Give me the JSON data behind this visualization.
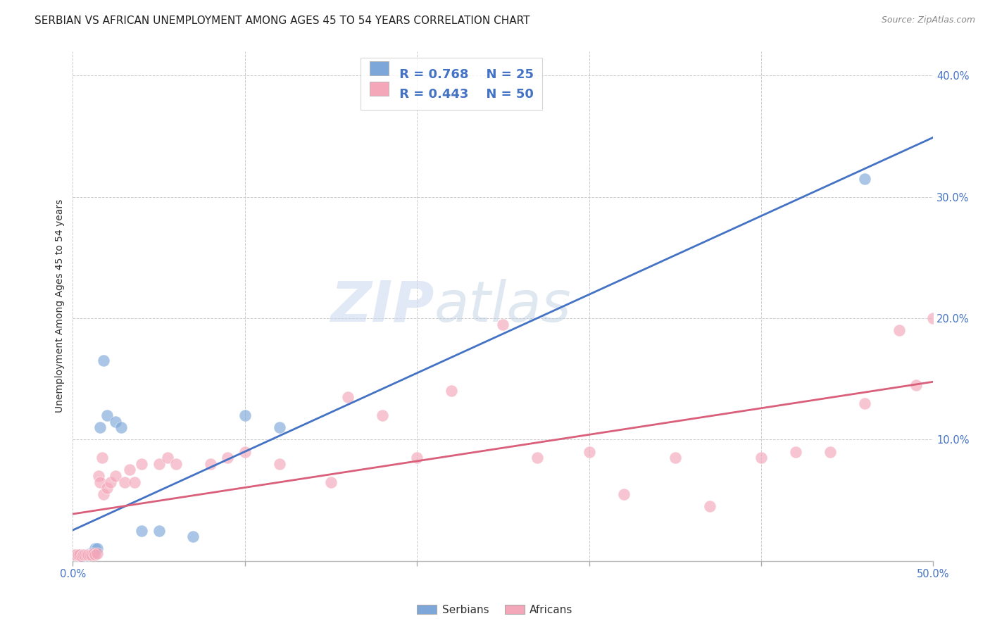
{
  "title": "SERBIAN VS AFRICAN UNEMPLOYMENT AMONG AGES 45 TO 54 YEARS CORRELATION CHART",
  "source": "Source: ZipAtlas.com",
  "ylabel": "Unemployment Among Ages 45 to 54 years",
  "xlim": [
    0,
    0.5
  ],
  "ylim": [
    0,
    0.42
  ],
  "xticks": [
    0.0,
    0.1,
    0.2,
    0.3,
    0.4,
    0.5
  ],
  "yticks": [
    0.1,
    0.2,
    0.3,
    0.4
  ],
  "x_edge_labels": [
    "0.0%",
    "50.0%"
  ],
  "ytick_labels": [
    "10.0%",
    "20.0%",
    "30.0%",
    "40.0%"
  ],
  "watermark_zip": "ZIP",
  "watermark_atlas": "atlas",
  "serbian_color": "#7da7d9",
  "african_color": "#f4a7b9",
  "serbian_line_color": "#4472c4",
  "african_line_color": "#d95f7a",
  "legend_R_serbian": "R = 0.768",
  "legend_N_serbian": "N = 25",
  "legend_R_african": "R = 0.443",
  "legend_N_african": "N = 50",
  "serbian_x": [
    0.001,
    0.002,
    0.003,
    0.004,
    0.005,
    0.006,
    0.007,
    0.008,
    0.009,
    0.01,
    0.011,
    0.012,
    0.013,
    0.014,
    0.016,
    0.018,
    0.02,
    0.025,
    0.028,
    0.04,
    0.05,
    0.07,
    0.1,
    0.12,
    0.46
  ],
  "serbian_y": [
    0.005,
    0.005,
    0.005,
    0.005,
    0.004,
    0.005,
    0.003,
    0.005,
    0.005,
    0.006,
    0.006,
    0.006,
    0.01,
    0.01,
    0.11,
    0.165,
    0.12,
    0.115,
    0.11,
    0.025,
    0.025,
    0.02,
    0.12,
    0.11,
    0.315
  ],
  "african_x": [
    0.001,
    0.002,
    0.003,
    0.004,
    0.005,
    0.006,
    0.007,
    0.008,
    0.009,
    0.01,
    0.011,
    0.012,
    0.013,
    0.014,
    0.015,
    0.016,
    0.017,
    0.018,
    0.02,
    0.022,
    0.025,
    0.03,
    0.033,
    0.036,
    0.04,
    0.05,
    0.055,
    0.06,
    0.08,
    0.09,
    0.1,
    0.12,
    0.15,
    0.16,
    0.18,
    0.2,
    0.22,
    0.25,
    0.27,
    0.3,
    0.32,
    0.35,
    0.37,
    0.4,
    0.42,
    0.44,
    0.46,
    0.48,
    0.49,
    0.5
  ],
  "african_y": [
    0.005,
    0.005,
    0.005,
    0.005,
    0.004,
    0.005,
    0.005,
    0.005,
    0.005,
    0.005,
    0.005,
    0.006,
    0.005,
    0.006,
    0.07,
    0.065,
    0.085,
    0.055,
    0.06,
    0.065,
    0.07,
    0.065,
    0.075,
    0.065,
    0.08,
    0.08,
    0.085,
    0.08,
    0.08,
    0.085,
    0.09,
    0.08,
    0.065,
    0.135,
    0.12,
    0.085,
    0.14,
    0.195,
    0.085,
    0.09,
    0.055,
    0.085,
    0.045,
    0.085,
    0.09,
    0.09,
    0.13,
    0.19,
    0.145,
    0.2
  ],
  "background_color": "#ffffff",
  "grid_color": "#cccccc",
  "title_fontsize": 11,
  "label_fontsize": 10,
  "tick_fontsize": 10.5
}
